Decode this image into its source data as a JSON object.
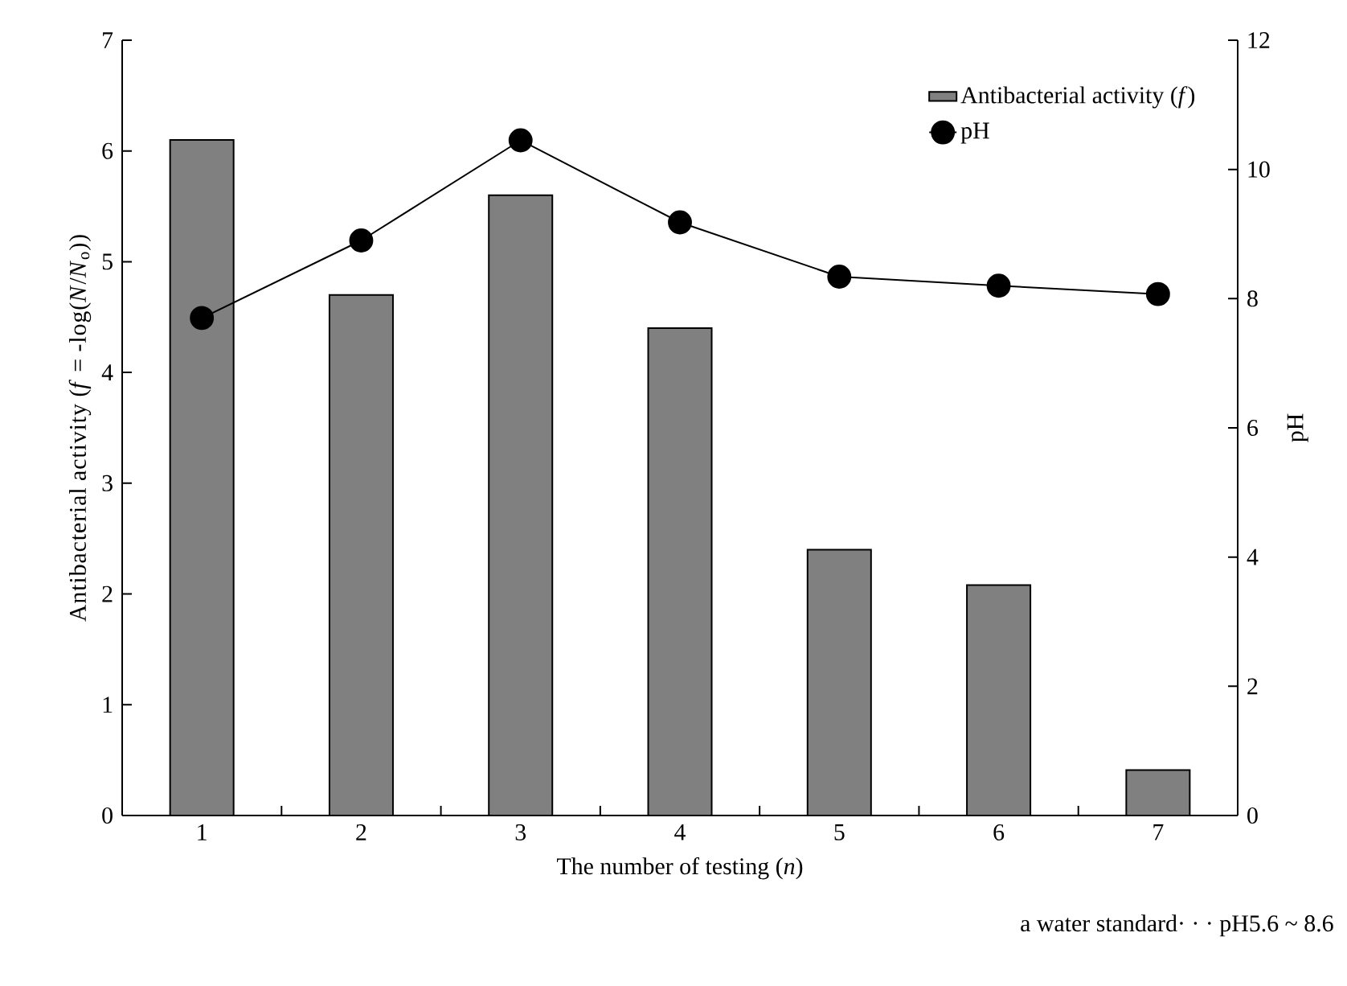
{
  "chart_data": {
    "type": "bar",
    "xlabel": "The number of testing (*n*)",
    "ylabel": "Antibacterial activity (*f* = -log(*N*/*N*$_{o}$))",
    "y2label": "pH",
    "categories": [
      "1",
      "2",
      "3",
      "4",
      "5",
      "6",
      "7"
    ],
    "series": [
      {
        "name": "Antibacterial activity (*f*)",
        "color": "#808080",
        "values": [
          6.1,
          4.7,
          5.6,
          4.4,
          2.4,
          2.08,
          0.41
        ]
      },
      {
        "name": "pH",
        "type": "line",
        "axis": "y2",
        "color": "#000000",
        "marker": "circle",
        "values": [
          7.7,
          8.9,
          10.45,
          9.18,
          8.34,
          8.2,
          8.07
        ]
      }
    ],
    "ylim": [
      0,
      7
    ],
    "yticks": [
      0,
      1,
      2,
      3,
      4,
      5,
      6,
      7
    ],
    "y2lim": [
      0,
      12
    ],
    "y2ticks": [
      0,
      2,
      4,
      6,
      8,
      10,
      12
    ],
    "grid": false,
    "legend": "top right",
    "annotations": [
      "a  water standard· · · pH5.6 ~ 8.6"
    ]
  }
}
